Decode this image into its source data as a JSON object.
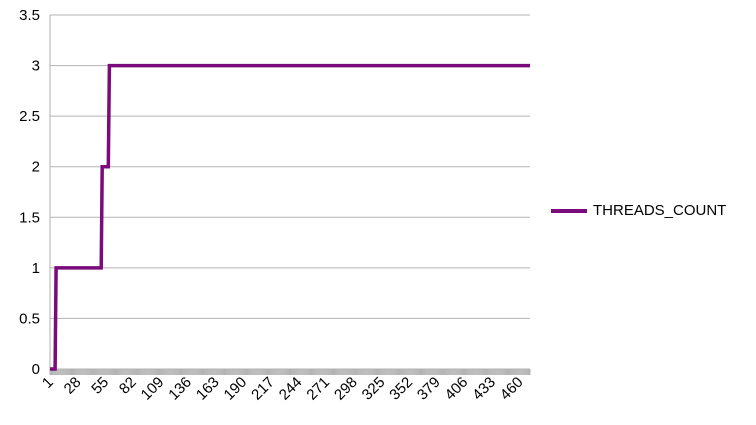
{
  "chart_data": {
    "type": "line",
    "title": "",
    "xlabel": "",
    "ylabel": "",
    "ylim": [
      0,
      3.5
    ],
    "yticks": [
      "0",
      "0.5",
      "1",
      "1.5",
      "2",
      "2.5",
      "3",
      "3.5"
    ],
    "xlim": [
      1,
      470
    ],
    "xticks": [
      "1",
      "28",
      "55",
      "82",
      "109",
      "136",
      "163",
      "190",
      "217",
      "244",
      "271",
      "298",
      "325",
      "352",
      "379",
      "406",
      "433",
      "460"
    ],
    "grid": true,
    "legend_position": "right",
    "series": [
      {
        "name": "THREADS_COUNT",
        "color": "#7b0a7b",
        "points": [
          [
            1,
            0
          ],
          [
            6,
            0
          ],
          [
            7,
            1
          ],
          [
            51,
            1
          ],
          [
            52,
            2
          ],
          [
            58,
            2
          ],
          [
            59,
            3
          ],
          [
            470,
            3
          ]
        ]
      }
    ]
  }
}
